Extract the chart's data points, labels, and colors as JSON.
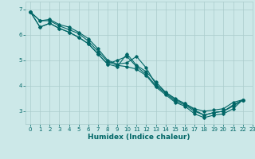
{
  "xlabel": "Humidex (Indice chaleur)",
  "ylabel": "",
  "xlim": [
    -0.5,
    23
  ],
  "ylim": [
    2.5,
    7.3
  ],
  "background_color": "#cce8e8",
  "grid_color": "#aacccc",
  "line_color": "#006666",
  "lines": [
    [
      0,
      6.9,
      1,
      6.55,
      2,
      6.6,
      3,
      6.4,
      4,
      6.3,
      5,
      6.1,
      6,
      5.85,
      7,
      5.45,
      8,
      5.0,
      9,
      4.85,
      10,
      4.9,
      11,
      5.15,
      12,
      4.7,
      13,
      4.05,
      14,
      3.75,
      15,
      3.45,
      16,
      3.3,
      17,
      3.05,
      18,
      2.85,
      19,
      2.95,
      20,
      3.0,
      21,
      3.25,
      22,
      3.45
    ],
    [
      0,
      6.9,
      1,
      6.55,
      2,
      6.55,
      3,
      6.35,
      4,
      6.2,
      5,
      6.05,
      6,
      5.75,
      7,
      5.35,
      8,
      4.95,
      9,
      4.8,
      10,
      4.75,
      11,
      4.65,
      12,
      4.4,
      13,
      3.95,
      14,
      3.65,
      15,
      3.35,
      16,
      3.2,
      17,
      2.9,
      18,
      2.75,
      19,
      2.85,
      20,
      2.9,
      21,
      3.1,
      22,
      3.45
    ],
    [
      0,
      6.9,
      1,
      6.3,
      2,
      6.45,
      3,
      6.25,
      4,
      6.1,
      5,
      5.9,
      6,
      5.65,
      7,
      5.25,
      8,
      4.85,
      9,
      4.75,
      10,
      5.25,
      11,
      4.8,
      12,
      4.55,
      13,
      4.15,
      14,
      3.75,
      15,
      3.5,
      16,
      3.3,
      17,
      3.1,
      18,
      3.0,
      19,
      3.05,
      20,
      3.1,
      21,
      3.35,
      22,
      3.45
    ],
    [
      0,
      6.9,
      1,
      6.3,
      2,
      6.45,
      3,
      6.25,
      4,
      6.1,
      5,
      5.9,
      6,
      5.65,
      7,
      5.25,
      8,
      4.85,
      9,
      5.0,
      10,
      5.15,
      11,
      4.75,
      12,
      4.45,
      13,
      4.0,
      14,
      3.7,
      15,
      3.4,
      16,
      3.25,
      17,
      3.0,
      18,
      2.85,
      19,
      2.95,
      20,
      3.0,
      21,
      3.2,
      22,
      3.45
    ]
  ],
  "marker": "D",
  "marker_size": 1.8,
  "linewidth": 0.8,
  "xticks": [
    0,
    1,
    2,
    3,
    4,
    5,
    6,
    7,
    8,
    9,
    10,
    11,
    12,
    13,
    14,
    15,
    16,
    17,
    18,
    19,
    20,
    21,
    22,
    23
  ],
  "yticks": [
    3,
    4,
    5,
    6,
    7
  ],
  "tick_fontsize": 5.0,
  "xlabel_fontsize": 6.5,
  "fig_width": 3.2,
  "fig_height": 2.0,
  "dpi": 100
}
